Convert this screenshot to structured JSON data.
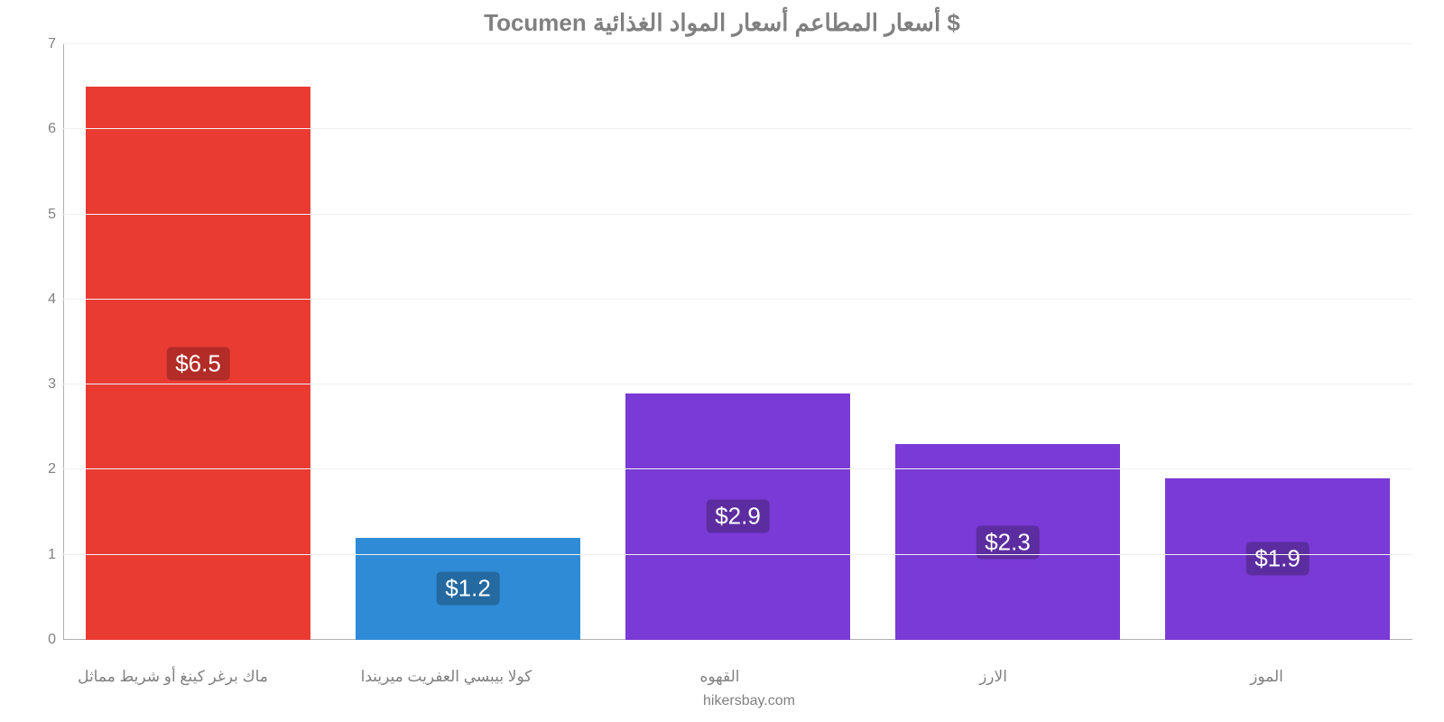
{
  "chart": {
    "type": "bar",
    "title": "$ أسعار المطاعم أسعار المواد الغذائية Tocumen",
    "title_color": "#808080",
    "title_fontsize": 26,
    "background_color": "#ffffff",
    "grid_color": "#f0f0f0",
    "axis_color": "#b0b0b0",
    "label_color": "#808080",
    "label_fontsize": 17,
    "ylim": [
      0,
      7
    ],
    "yticks": [
      0,
      1,
      2,
      3,
      4,
      5,
      6,
      7
    ],
    "yticks_fontsize": 16,
    "categories": [
      "ماك برغر كينغ أو شريط مماثل",
      "كولا بيبسي العفريت ميريندا",
      "القهوه",
      "الارز",
      "الموز"
    ],
    "values": [
      6.5,
      1.2,
      2.9,
      2.3,
      1.9
    ],
    "value_labels": [
      "$6.5",
      "$1.2",
      "$2.9",
      "$2.3",
      "$1.9"
    ],
    "bar_colors": [
      "#ea3b33",
      "#2f8bd6",
      "#7a3ad6",
      "#7a3ad6",
      "#7a3ad6"
    ],
    "label_bg_colors": [
      "#b32c27",
      "#24699f",
      "#5c2da0",
      "#5c2da0",
      "#5c2da0"
    ],
    "value_label_color": "#ffffff",
    "value_label_fontsize": 26,
    "bar_width": 0.83,
    "credit": "hikersbay.com"
  }
}
